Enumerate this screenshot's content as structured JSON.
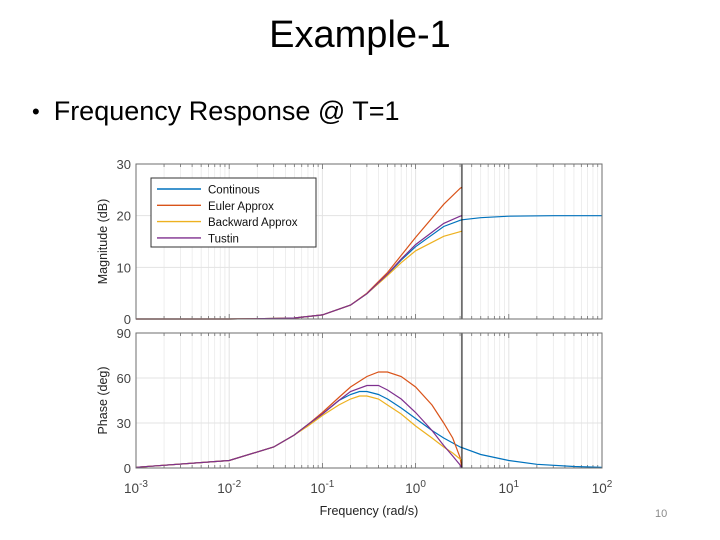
{
  "slide": {
    "title": "Example-1",
    "bullet": "Frequency Response @ T=1",
    "page_number": "10"
  },
  "chart_data": {
    "type": "line",
    "xscale": "log",
    "xlim": [
      0.001,
      100
    ],
    "x_ticks": [
      0.001,
      0.01,
      0.1,
      1,
      10,
      100
    ],
    "x_tick_labels": [
      [
        "10",
        "-3"
      ],
      [
        "10",
        "-2"
      ],
      [
        "10",
        "-1"
      ],
      [
        "10",
        "0"
      ],
      [
        "10",
        "1"
      ],
      [
        "10",
        "2"
      ]
    ],
    "xlabel": "Frequency  (rad/s)",
    "nyquist_marker_x": 3.1416,
    "grid": true,
    "legend": {
      "position": "top-left",
      "entries": [
        "Continous",
        "Euler Approx",
        "Backward Approx",
        "Tustin"
      ]
    },
    "colors": {
      "Continous": "#0072bd",
      "Euler Approx": "#d95319",
      "Backward Approx": "#edb120",
      "Tustin": "#7e2f8e",
      "marker": "#000000",
      "axes": "#6e6e6e",
      "grid": "#e3e3e3"
    },
    "panels": [
      {
        "ylabel": "Magnitude (dB)",
        "ylim": [
          0,
          30
        ],
        "y_ticks": [
          0,
          10,
          20,
          30
        ],
        "series": [
          {
            "name": "Continous",
            "x": [
              0.001,
              0.01,
              0.03,
              0.05,
              0.1,
              0.2,
              0.3,
              0.5,
              0.7,
              1,
              2,
              3,
              3.14,
              5,
              10,
              30,
              100
            ],
            "y": [
              0,
              0,
              0.1,
              0.2,
              0.8,
              2.7,
              4.9,
              8.6,
              11.4,
              14.0,
              17.9,
              19.1,
              19.2,
              19.6,
              19.9,
              20,
              20
            ]
          },
          {
            "name": "Euler Approx",
            "x": [
              0.001,
              0.01,
              0.03,
              0.05,
              0.1,
              0.2,
              0.3,
              0.5,
              0.7,
              1,
              2,
              3,
              3.14
            ],
            "y": [
              0,
              0,
              0.1,
              0.2,
              0.8,
              2.7,
              5.0,
              9.0,
              12.3,
              15.8,
              22.2,
              25.3,
              25.5
            ]
          },
          {
            "name": "Backward Approx",
            "x": [
              0.001,
              0.01,
              0.03,
              0.05,
              0.1,
              0.2,
              0.3,
              0.5,
              0.7,
              1,
              2,
              3,
              3.14
            ],
            "y": [
              0,
              0,
              0.1,
              0.2,
              0.8,
              2.7,
              4.9,
              8.4,
              10.9,
              13.2,
              16.0,
              16.9,
              17.0
            ]
          },
          {
            "name": "Tustin",
            "x": [
              0.001,
              0.01,
              0.03,
              0.05,
              0.1,
              0.2,
              0.3,
              0.5,
              0.7,
              1,
              2,
              3,
              3.14
            ],
            "y": [
              0,
              0,
              0.1,
              0.2,
              0.8,
              2.7,
              4.9,
              8.7,
              11.6,
              14.4,
              18.5,
              19.9,
              20.0
            ]
          }
        ]
      },
      {
        "ylabel": "Phase (deg)",
        "ylim": [
          0,
          90
        ],
        "y_ticks": [
          0,
          30,
          60,
          90
        ],
        "series": [
          {
            "name": "Continous",
            "x": [
              0.001,
              0.01,
              0.03,
              0.05,
              0.07,
              0.1,
              0.15,
              0.2,
              0.25,
              0.3,
              0.4,
              0.5,
              0.7,
              1,
              1.5,
              2,
              3,
              5,
              10,
              20,
              50,
              100
            ],
            "y": [
              0.5,
              5,
              14,
              22,
              29,
              36,
              45,
              49,
              51,
              51,
              49,
              46,
              40,
              33,
              25,
              20,
              14,
              9,
              5,
              2.5,
              1,
              0.5
            ]
          },
          {
            "name": "Euler Approx",
            "x": [
              0.001,
              0.01,
              0.03,
              0.05,
              0.07,
              0.1,
              0.15,
              0.2,
              0.3,
              0.4,
              0.5,
              0.7,
              1,
              1.5,
              2,
              2.5,
              3,
              3.14
            ],
            "y": [
              0.5,
              5,
              14,
              22,
              29,
              37,
              47,
              54,
              61,
              64,
              64,
              61,
              54,
              42,
              30,
              20,
              7,
              0
            ]
          },
          {
            "name": "Backward Approx",
            "x": [
              0.001,
              0.01,
              0.03,
              0.05,
              0.07,
              0.1,
              0.15,
              0.2,
              0.25,
              0.3,
              0.4,
              0.5,
              0.7,
              1,
              1.5,
              2,
              2.5,
              3,
              3.14
            ],
            "y": [
              0.5,
              5,
              14,
              22,
              28,
              35,
              42,
              46,
              48,
              48,
              46,
              42,
              36,
              28,
              20,
              14,
              10,
              6,
              5
            ]
          },
          {
            "name": "Tustin",
            "x": [
              0.001,
              0.01,
              0.03,
              0.05,
              0.07,
              0.1,
              0.15,
              0.2,
              0.3,
              0.4,
              0.5,
              0.7,
              1,
              1.5,
              2,
              2.5,
              3,
              3.14
            ],
            "y": [
              0.5,
              5,
              14,
              22,
              29,
              36,
              45,
              51,
              55,
              55,
              52,
              46,
              37,
              25,
              15,
              8,
              2,
              0
            ]
          }
        ]
      }
    ]
  }
}
